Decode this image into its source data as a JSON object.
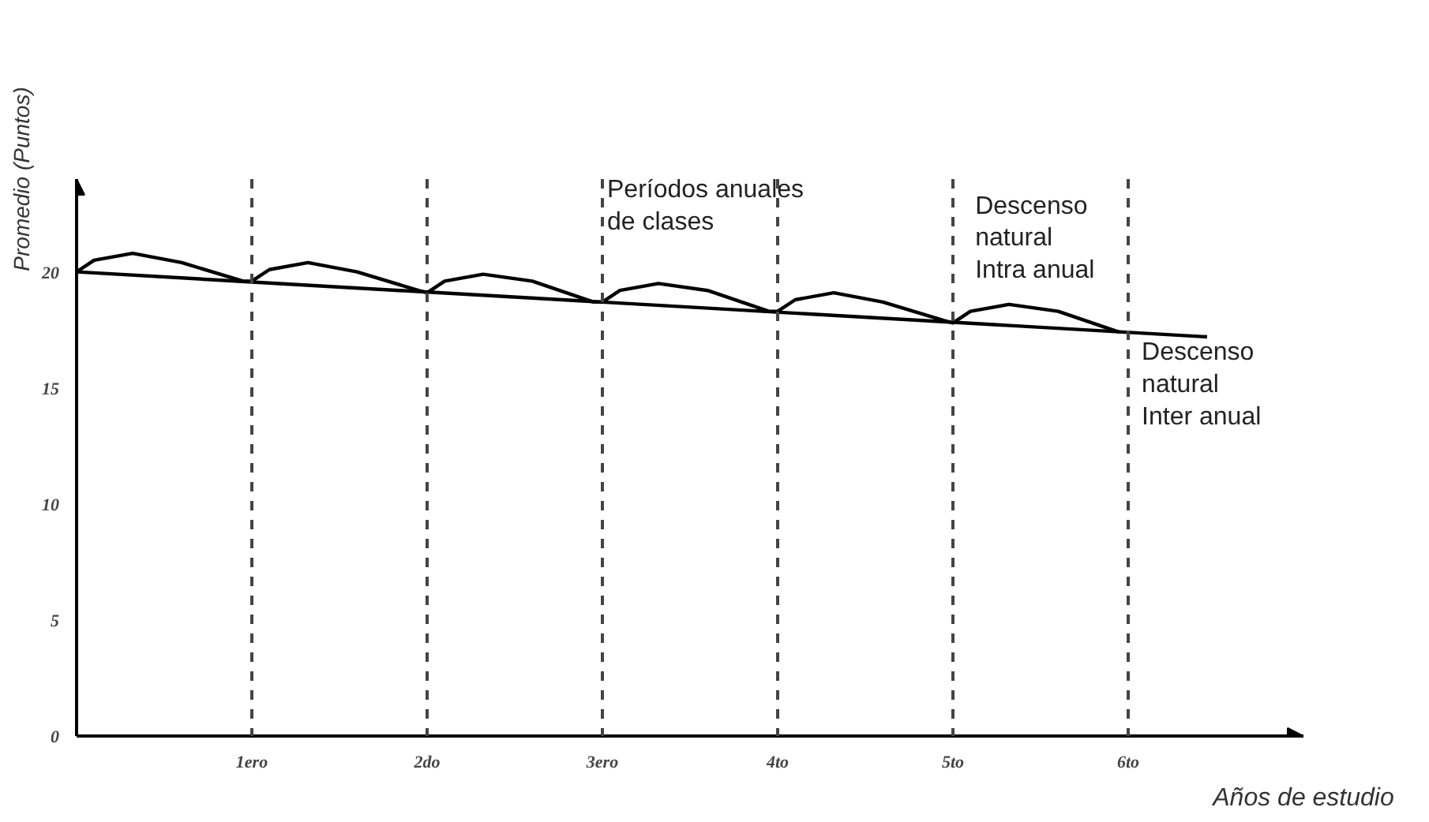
{
  "chart_data": {
    "type": "line",
    "xlabel": "Años de estudio",
    "ylabel": "Promedio (Puntos)",
    "xlim": [
      0,
      7
    ],
    "ylim": [
      0,
      24
    ],
    "xticks": [
      {
        "value": 1,
        "label": "1ero"
      },
      {
        "value": 2,
        "label": "2do"
      },
      {
        "value": 3,
        "label": "3ero"
      },
      {
        "value": 4,
        "label": "4to"
      },
      {
        "value": 5,
        "label": "5to"
      },
      {
        "value": 6,
        "label": "6to"
      }
    ],
    "yticks": [
      0,
      5,
      10,
      15,
      20
    ],
    "grid": false,
    "marker": "none",
    "line_style": "solid",
    "series": [
      {
        "color": "#000000",
        "x": [
          0,
          0.1,
          0.32,
          0.6,
          0.95,
          1,
          1.1,
          1.32,
          1.6,
          1.95,
          2,
          2.1,
          2.32,
          2.6,
          2.95,
          3,
          3.1,
          3.32,
          3.6,
          3.95,
          4,
          4.1,
          4.32,
          4.6,
          4.95,
          5,
          5.1,
          5.32,
          5.6,
          5.95
        ],
        "values": [
          20,
          20.5,
          20.8,
          20.4,
          19.6,
          19.6,
          20.1,
          20.4,
          20.0,
          19.2,
          19.1,
          19.6,
          19.9,
          19.6,
          18.7,
          18.7,
          19.2,
          19.5,
          19.2,
          18.3,
          18.3,
          18.8,
          19.1,
          18.7,
          17.9,
          17.8,
          18.3,
          18.6,
          18.3,
          17.4
        ]
      },
      {
        "color": "#000000",
        "x": [
          0,
          6.45
        ],
        "values": [
          20,
          17.2
        ]
      }
    ],
    "ref_lines": [
      {
        "axis": "x",
        "value": 1,
        "line_style": "dashed",
        "color": "#444444"
      },
      {
        "axis": "x",
        "value": 2,
        "line_style": "dashed",
        "color": "#444444"
      },
      {
        "axis": "x",
        "value": 3,
        "line_style": "dashed",
        "color": "#444444"
      },
      {
        "axis": "x",
        "value": 4,
        "line_style": "dashed",
        "color": "#444444"
      },
      {
        "axis": "x",
        "value": 5,
        "line_style": "dashed",
        "color": "#444444"
      },
      {
        "axis": "x",
        "value": 6,
        "line_style": "dashed",
        "color": "#444444"
      }
    ],
    "annotations": [
      "Períodos anuales\nde clases",
      "Descenso\nnatural\nIntra anual",
      "Descenso\nnatural\nInter anual"
    ]
  }
}
